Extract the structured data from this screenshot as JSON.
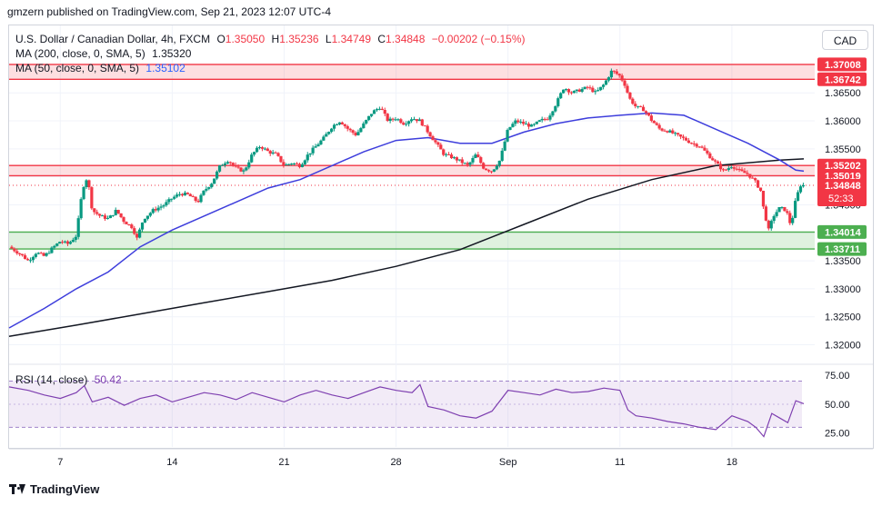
{
  "header": {
    "publisher": "gmzern published on TradingView.com, Sep 21, 2023 12:07 UTC-4"
  },
  "legend": {
    "title": "U.S. Dollar / Canadian Dollar, 4h, FXCM",
    "o_label": "O",
    "o_value": "1.35050",
    "h_label": "H",
    "h_value": "1.35236",
    "l_label": "L",
    "l_value": "1.34749",
    "c_label": "C",
    "c_value": "1.34848",
    "change": "−0.00202 (−0.15%)",
    "ma200_label": "MA (200, close, 0, SMA, 5)",
    "ma200_value": "1.35320",
    "ma50_label": "MA (50, close, 0, SMA, 5)",
    "ma50_value": "1.35102",
    "rsi_label": "RSI (14, close)",
    "rsi_value": "50.42"
  },
  "currency_button": "CAD",
  "brand": "TradingView",
  "colors": {
    "up": "#089981",
    "down": "#f23645",
    "ma50": "#3d3ddc",
    "ma200": "#131722",
    "rsi": "#7e3fb0",
    "resistance": "#f23645",
    "support": "#4caf50"
  },
  "chart_data": [
    {
      "type": "candlestick",
      "symbol": "USDCAD",
      "timeframe": "4h",
      "y_ticks": [
        "1.36500",
        "1.36000",
        "1.35500",
        "1.35000",
        "1.34500",
        "1.34000",
        "1.33500",
        "1.33000",
        "1.32500",
        "1.32000"
      ],
      "ylim": [
        1.317,
        1.3725
      ],
      "x_ticks": [
        "7",
        "14",
        "21",
        "28",
        "Sep",
        "11",
        "18"
      ],
      "x_ticks_day": [
        7,
        14,
        21,
        28,
        35,
        42,
        49
      ],
      "x_range_day": [
        3.8,
        53.5
      ],
      "price_labels": [
        {
          "value": 1.37008,
          "text": "1.37008",
          "kind": "resistance"
        },
        {
          "value": 1.36742,
          "text": "1.36742",
          "kind": "resistance"
        },
        {
          "value": 1.35202,
          "text": "1.35202",
          "kind": "resistance"
        },
        {
          "value": 1.35019,
          "text": "1.35019",
          "kind": "resistance"
        },
        {
          "value": 1.34848,
          "text": "1.34848",
          "kind": "last",
          "countdown": "52:33"
        },
        {
          "value": 1.34014,
          "text": "1.34014",
          "kind": "support"
        },
        {
          "value": 1.33711,
          "text": "1.33711",
          "kind": "support"
        }
      ],
      "zones": [
        {
          "kind": "resistance",
          "y": [
            1.36742,
            1.37008
          ]
        },
        {
          "kind": "resistance",
          "y": [
            1.35019,
            1.35202
          ]
        },
        {
          "kind": "support",
          "y": [
            1.33711,
            1.34014
          ]
        }
      ],
      "close_path": [
        [
          3.8,
          1.3375
        ],
        [
          4.5,
          1.3362
        ],
        [
          5.0,
          1.335
        ],
        [
          5.5,
          1.3365
        ],
        [
          6.0,
          1.3358
        ],
        [
          6.6,
          1.3375
        ],
        [
          7.0,
          1.3385
        ],
        [
          7.5,
          1.338
        ],
        [
          8.0,
          1.3395
        ],
        [
          8.4,
          1.348
        ],
        [
          8.7,
          1.35
        ],
        [
          9.0,
          1.344
        ],
        [
          9.5,
          1.343
        ],
        [
          10.0,
          1.3425
        ],
        [
          10.5,
          1.344
        ],
        [
          11.0,
          1.342
        ],
        [
          11.5,
          1.341
        ],
        [
          11.8,
          1.339
        ],
        [
          12.2,
          1.3425
        ],
        [
          12.8,
          1.344
        ],
        [
          13.5,
          1.345
        ],
        [
          14.0,
          1.3462
        ],
        [
          14.5,
          1.347
        ],
        [
          15.0,
          1.3468
        ],
        [
          15.6,
          1.3455
        ],
        [
          16.0,
          1.3475
        ],
        [
          16.5,
          1.349
        ],
        [
          17.0,
          1.352
        ],
        [
          17.5,
          1.353
        ],
        [
          18.0,
          1.3515
        ],
        [
          18.5,
          1.351
        ],
        [
          19.0,
          1.354
        ],
        [
          19.5,
          1.3555
        ],
        [
          20.0,
          1.3545
        ],
        [
          20.5,
          1.354
        ],
        [
          21.0,
          1.352
        ],
        [
          21.5,
          1.3525
        ],
        [
          22.0,
          1.352
        ],
        [
          22.5,
          1.354
        ],
        [
          23.0,
          1.3555
        ],
        [
          23.5,
          1.357
        ],
        [
          24.0,
          1.359
        ],
        [
          24.5,
          1.36
        ],
        [
          25.0,
          1.3585
        ],
        [
          25.5,
          1.3575
        ],
        [
          26.0,
          1.3595
        ],
        [
          26.5,
          1.3615
        ],
        [
          27.0,
          1.3625
        ],
        [
          27.5,
          1.36
        ],
        [
          28.0,
          1.3605
        ],
        [
          28.5,
          1.3595
        ],
        [
          29.0,
          1.3605
        ],
        [
          29.5,
          1.36
        ],
        [
          30.0,
          1.358
        ],
        [
          30.5,
          1.356
        ],
        [
          31.0,
          1.354
        ],
        [
          31.5,
          1.3535
        ],
        [
          32.0,
          1.3528
        ],
        [
          32.5,
          1.352
        ],
        [
          33.0,
          1.354
        ],
        [
          33.5,
          1.3515
        ],
        [
          34.0,
          1.351
        ],
        [
          34.5,
          1.353
        ],
        [
          35.0,
          1.3585
        ],
        [
          35.5,
          1.36
        ],
        [
          36.0,
          1.3595
        ],
        [
          36.5,
          1.359
        ],
        [
          37.0,
          1.36
        ],
        [
          37.5,
          1.3605
        ],
        [
          38.0,
          1.363
        ],
        [
          38.5,
          1.366
        ],
        [
          39.0,
          1.365
        ],
        [
          39.5,
          1.3655
        ],
        [
          40.0,
          1.366
        ],
        [
          40.5,
          1.365
        ],
        [
          41.0,
          1.3665
        ],
        [
          41.5,
          1.369
        ],
        [
          42.0,
          1.368
        ],
        [
          42.3,
          1.3665
        ],
        [
          42.6,
          1.364
        ],
        [
          43.0,
          1.3625
        ],
        [
          43.5,
          1.362
        ],
        [
          44.0,
          1.36
        ],
        [
          44.5,
          1.3585
        ],
        [
          45.0,
          1.3582
        ],
        [
          45.5,
          1.3575
        ],
        [
          46.0,
          1.3568
        ],
        [
          46.5,
          1.356
        ],
        [
          47.0,
          1.3555
        ],
        [
          47.5,
          1.354
        ],
        [
          48.0,
          1.3525
        ],
        [
          48.5,
          1.351
        ],
        [
          49.0,
          1.352
        ],
        [
          49.5,
          1.351
        ],
        [
          50.0,
          1.3505
        ],
        [
          50.5,
          1.349
        ],
        [
          50.8,
          1.3475
        ],
        [
          51.0,
          1.344
        ],
        [
          51.3,
          1.3405
        ],
        [
          51.6,
          1.343
        ],
        [
          52.0,
          1.3445
        ],
        [
          52.4,
          1.344
        ],
        [
          52.7,
          1.3412
        ],
        [
          53.0,
          1.346
        ],
        [
          53.3,
          1.3485
        ],
        [
          53.5,
          1.34848
        ]
      ],
      "ma50_path": [
        [
          3.8,
          1.323
        ],
        [
          6.0,
          1.3265
        ],
        [
          8.0,
          1.33
        ],
        [
          10.0,
          1.333
        ],
        [
          12.0,
          1.3375
        ],
        [
          14.0,
          1.3405
        ],
        [
          16.0,
          1.343
        ],
        [
          18.0,
          1.3455
        ],
        [
          20.0,
          1.348
        ],
        [
          22.0,
          1.3495
        ],
        [
          24.0,
          1.352
        ],
        [
          26.0,
          1.3545
        ],
        [
          28.0,
          1.3565
        ],
        [
          30.0,
          1.357
        ],
        [
          32.0,
          1.356
        ],
        [
          34.0,
          1.356
        ],
        [
          36.0,
          1.358
        ],
        [
          38.0,
          1.3595
        ],
        [
          40.0,
          1.3605
        ],
        [
          42.0,
          1.361
        ],
        [
          44.0,
          1.3614
        ],
        [
          46.0,
          1.361
        ],
        [
          48.0,
          1.3585
        ],
        [
          50.0,
          1.356
        ],
        [
          52.0,
          1.353
        ],
        [
          53.0,
          1.3512
        ],
        [
          53.5,
          1.35102
        ]
      ],
      "ma200_path": [
        [
          3.8,
          1.3215
        ],
        [
          8.0,
          1.3235
        ],
        [
          12.0,
          1.3255
        ],
        [
          16.0,
          1.3275
        ],
        [
          20.0,
          1.3295
        ],
        [
          24.0,
          1.3315
        ],
        [
          28.0,
          1.334
        ],
        [
          32.0,
          1.337
        ],
        [
          36.0,
          1.3415
        ],
        [
          40.0,
          1.346
        ],
        [
          44.0,
          1.3495
        ],
        [
          48.0,
          1.352
        ],
        [
          52.0,
          1.353
        ],
        [
          53.5,
          1.3532
        ]
      ]
    },
    {
      "type": "line",
      "name": "RSI (14, close)",
      "y_ticks": [
        "75.00",
        "50.00",
        "25.00"
      ],
      "ylim": [
        13,
        83
      ],
      "bands": [
        30,
        70
      ],
      "x": [
        3.8,
        5.0,
        6.0,
        7.0,
        8.0,
        8.5,
        9.0,
        10.0,
        11.0,
        12.0,
        13.0,
        14.0,
        15.0,
        16.0,
        17.0,
        18.0,
        19.0,
        20.0,
        21.0,
        22.0,
        23.0,
        24.0,
        25.0,
        26.0,
        27.0,
        28.0,
        29.0,
        29.5,
        30.0,
        31.0,
        32.0,
        33.0,
        34.0,
        35.0,
        36.0,
        37.0,
        38.0,
        39.0,
        40.0,
        41.0,
        42.0,
        42.5,
        43.0,
        44.0,
        45.0,
        46.0,
        47.0,
        48.0,
        49.0,
        50.0,
        50.5,
        51.0,
        51.5,
        52.0,
        52.5,
        53.0,
        53.5
      ],
      "values": [
        65,
        62,
        58,
        55,
        60,
        66,
        52,
        56,
        49,
        55,
        58,
        52,
        56,
        60,
        58,
        54,
        60,
        56,
        52,
        58,
        62,
        58,
        55,
        60,
        65,
        62,
        60,
        67,
        48,
        45,
        40,
        38,
        44,
        62,
        60,
        58,
        63,
        60,
        61,
        64,
        62,
        45,
        40,
        38,
        35,
        33,
        30,
        28,
        40,
        35,
        30,
        22,
        42,
        38,
        34,
        53,
        50.42
      ]
    }
  ]
}
